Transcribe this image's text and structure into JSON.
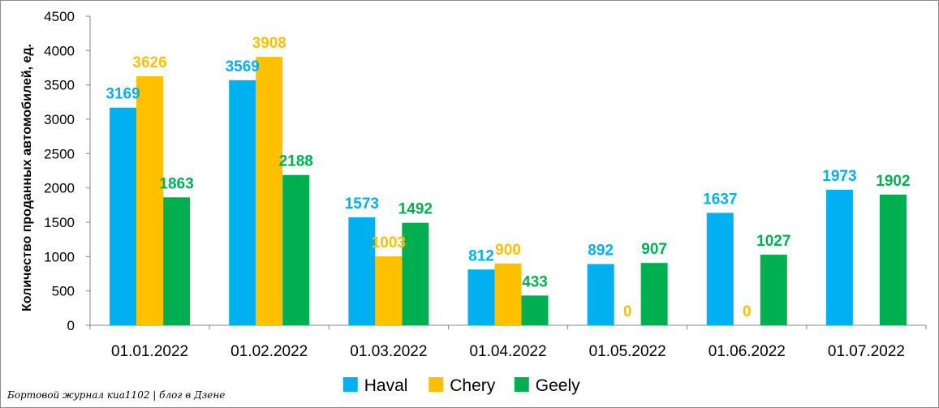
{
  "chart_data": {
    "type": "bar",
    "ylabel": "Количество проданных  автомобилей, ед.",
    "xlabel": "",
    "title": "",
    "ylim": [
      0,
      4500
    ],
    "ytick_step": 500,
    "yticks": [
      "0",
      "500",
      "1000",
      "1500",
      "2000",
      "2500",
      "3000",
      "3500",
      "4000",
      "4500"
    ],
    "categories": [
      "01.01.2022",
      "01.02.2022",
      "01.03.2022",
      "01.04.2022",
      "01.05.2022",
      "01.06.2022",
      "01.07.2022"
    ],
    "series": [
      {
        "name": "Haval",
        "color": "#00B0F0",
        "values": [
          3169,
          3569,
          1573,
          812,
          892,
          1637,
          1973
        ],
        "labels": [
          "3169",
          "3569",
          "1573",
          "812",
          "892",
          "1637",
          "1973"
        ]
      },
      {
        "name": "Chery",
        "color": "#FFC000",
        "values": [
          3626,
          3908,
          1003,
          900,
          0,
          0,
          null
        ],
        "labels": [
          "3626",
          "3908",
          "1003",
          "900",
          "0",
          "0",
          null
        ]
      },
      {
        "name": "Geely",
        "color": "#00B050",
        "values": [
          1863,
          2188,
          1492,
          433,
          907,
          1027,
          1902
        ],
        "labels": [
          "1863",
          "2188",
          "1492",
          "433",
          "907",
          "1027",
          "1902"
        ]
      }
    ],
    "legend": "bottom-center",
    "grid": false
  },
  "footer": {
    "credit": "Бортовой журнал киа1102 | блог в Дзене"
  }
}
